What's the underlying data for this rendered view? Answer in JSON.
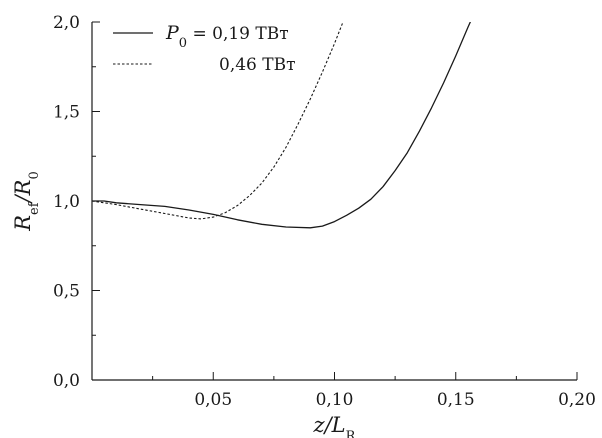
{
  "chart_data": {
    "type": "line",
    "xlim": [
      0,
      0.2
    ],
    "ylim": [
      0,
      2.0
    ],
    "x_ticks": [
      0.05,
      0.1,
      0.15,
      0.2
    ],
    "x_tick_labels": [
      "0,05",
      "0,10",
      "0,15",
      "0,20"
    ],
    "y_ticks": [
      0.0,
      0.5,
      1.0,
      1.5,
      2.0
    ],
    "y_tick_labels": [
      "0,0",
      "0,5",
      "1,0",
      "1,5",
      "2,0"
    ],
    "xlabel": {
      "main": "z/L",
      "sub": "R"
    },
    "ylabel": {
      "main": "R",
      "sub": "ef",
      "mid": "/R",
      "sub2": "0"
    },
    "grid": false,
    "legend_placement": "top-left",
    "legend": {
      "prefix_main": "P",
      "prefix_sub": "0",
      "prefix_eq": " = ",
      "entries": [
        "0,19 ТВт",
        "0,46 ТВт"
      ]
    },
    "series": [
      {
        "style": "solid",
        "color": "#1a1a1a",
        "points": [
          [
            0.0,
            1.0
          ],
          [
            0.005,
            1.0
          ],
          [
            0.01,
            0.99
          ],
          [
            0.02,
            0.98
          ],
          [
            0.03,
            0.97
          ],
          [
            0.04,
            0.95
          ],
          [
            0.05,
            0.925
          ],
          [
            0.06,
            0.895
          ],
          [
            0.07,
            0.87
          ],
          [
            0.08,
            0.855
          ],
          [
            0.09,
            0.85
          ],
          [
            0.095,
            0.86
          ],
          [
            0.1,
            0.885
          ],
          [
            0.105,
            0.92
          ],
          [
            0.11,
            0.96
          ],
          [
            0.115,
            1.01
          ],
          [
            0.12,
            1.08
          ],
          [
            0.125,
            1.17
          ],
          [
            0.13,
            1.27
          ],
          [
            0.135,
            1.39
          ],
          [
            0.14,
            1.52
          ],
          [
            0.145,
            1.66
          ],
          [
            0.15,
            1.81
          ],
          [
            0.155,
            1.97
          ],
          [
            0.157,
            2.03
          ]
        ]
      },
      {
        "style": "dashed",
        "color": "#1a1a1a",
        "points": [
          [
            0.0,
            1.0
          ],
          [
            0.01,
            0.98
          ],
          [
            0.02,
            0.955
          ],
          [
            0.03,
            0.93
          ],
          [
            0.04,
            0.905
          ],
          [
            0.045,
            0.9
          ],
          [
            0.05,
            0.91
          ],
          [
            0.055,
            0.935
          ],
          [
            0.06,
            0.975
          ],
          [
            0.065,
            1.03
          ],
          [
            0.07,
            1.1
          ],
          [
            0.075,
            1.19
          ],
          [
            0.08,
            1.3
          ],
          [
            0.085,
            1.43
          ],
          [
            0.09,
            1.57
          ],
          [
            0.095,
            1.72
          ],
          [
            0.1,
            1.88
          ],
          [
            0.1035,
            2.0
          ]
        ]
      }
    ]
  }
}
